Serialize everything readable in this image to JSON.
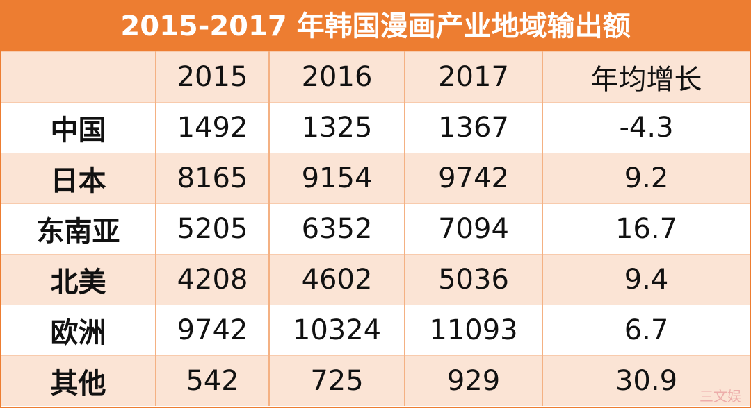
{
  "title": "2015-2017 年韩国漫画产业地域输出额",
  "table": {
    "header": [
      "",
      "2015",
      "2016",
      "2017",
      "年均增长"
    ],
    "rows": [
      [
        "中国",
        1492,
        1325,
        1367,
        -4.3
      ],
      [
        "日本",
        8165,
        9154,
        9742,
        9.2
      ],
      [
        "东南亚",
        5205,
        6352,
        7094,
        16.7
      ],
      [
        "北美",
        4208,
        4602,
        5036,
        9.4
      ],
      [
        "欧洲",
        9742,
        10324,
        11093,
        6.7
      ],
      [
        "其他",
        542,
        725,
        929,
        30.9
      ]
    ]
  },
  "watermark": "三文娱"
}
